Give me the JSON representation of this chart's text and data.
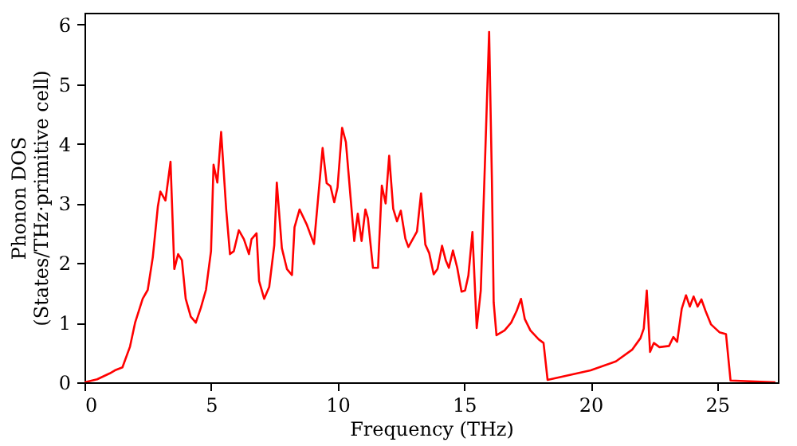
{
  "chart_data": {
    "type": "line",
    "xlabel": "Frequency (THz)",
    "ylabel": "Phonon DOS\n(States/THz·primitive cell)",
    "xlim": [
      0,
      27.4
    ],
    "ylim": [
      0,
      6.2
    ],
    "xticks": [
      0,
      5,
      10,
      15,
      20,
      25
    ],
    "yticks": [
      0,
      1,
      2,
      3,
      4,
      5,
      6
    ],
    "grid": false,
    "line_style": "solid",
    "marker": "none",
    "x": [
      0,
      0.5,
      1,
      1.2,
      1.5,
      1.8,
      2.0,
      2.3,
      2.5,
      2.7,
      2.9,
      3.0,
      3.2,
      3.4,
      3.55,
      3.7,
      3.85,
      4.0,
      4.2,
      4.4,
      4.6,
      4.8,
      5.0,
      5.1,
      5.25,
      5.4,
      5.6,
      5.75,
      5.9,
      6.1,
      6.3,
      6.5,
      6.6,
      6.8,
      6.9,
      7.1,
      7.3,
      7.5,
      7.6,
      7.8,
      8.0,
      8.2,
      8.3,
      8.5,
      8.79,
      9.07,
      9.41,
      9.57,
      9.72,
      9.87,
      10.0,
      10.18,
      10.33,
      10.66,
      10.8,
      10.95,
      11.1,
      11.2,
      11.4,
      11.6,
      11.75,
      11.9,
      12.04,
      12.2,
      12.35,
      12.5,
      12.68,
      12.8,
      13.14,
      13.3,
      13.47,
      13.62,
      13.8,
      13.95,
      14.13,
      14.28,
      14.4,
      14.56,
      14.73,
      14.9,
      15.04,
      15.17,
      15.33,
      15.5,
      15.66,
      15.84,
      15.99,
      16.1,
      16.17,
      16.28,
      16.6,
      16.86,
      17.08,
      17.25,
      17.4,
      17.62,
      17.95,
      18.14,
      18.3,
      20.0,
      21.0,
      21.65,
      21.97,
      22.1,
      22.22,
      22.35,
      22.5,
      22.72,
      23.1,
      23.27,
      23.42,
      23.6,
      23.77,
      23.92,
      24.07,
      24.23,
      24.38,
      24.54,
      24.76,
      25.09,
      25.35,
      25.53,
      27.3
    ],
    "series": [
      {
        "color": "#ff0000",
        "values": [
          0,
          0.05,
          0.15,
          0.2,
          0.25,
          0.6,
          1.0,
          1.4,
          1.55,
          2.1,
          2.95,
          3.2,
          3.05,
          3.7,
          1.9,
          2.15,
          2.05,
          1.4,
          1.1,
          1.0,
          1.25,
          1.55,
          2.2,
          3.65,
          3.35,
          4.2,
          2.9,
          2.15,
          2.2,
          2.55,
          2.4,
          2.15,
          2.4,
          2.5,
          1.7,
          1.4,
          1.6,
          2.3,
          3.35,
          2.25,
          1.9,
          1.8,
          2.6,
          2.9,
          2.64,
          2.32,
          3.93,
          3.34,
          3.29,
          3.02,
          3.27,
          4.27,
          4.03,
          2.37,
          2.83,
          2.37,
          2.9,
          2.75,
          1.92,
          1.92,
          3.3,
          3.0,
          3.8,
          2.91,
          2.7,
          2.88,
          2.41,
          2.27,
          2.53,
          3.17,
          2.31,
          2.17,
          1.81,
          1.9,
          2.29,
          2.04,
          1.92,
          2.21,
          1.92,
          1.52,
          1.54,
          1.79,
          2.52,
          0.91,
          1.54,
          3.88,
          5.88,
          3.39,
          1.34,
          0.79,
          0.87,
          1.0,
          1.2,
          1.4,
          1.06,
          0.87,
          0.72,
          0.66,
          0.04,
          0.2,
          0.35,
          0.55,
          0.74,
          0.9,
          1.54,
          0.51,
          0.66,
          0.59,
          0.61,
          0.76,
          0.68,
          1.23,
          1.46,
          1.27,
          1.44,
          1.27,
          1.39,
          1.2,
          0.97,
          0.84,
          0.81,
          0.03,
          0
        ]
      }
    ]
  }
}
